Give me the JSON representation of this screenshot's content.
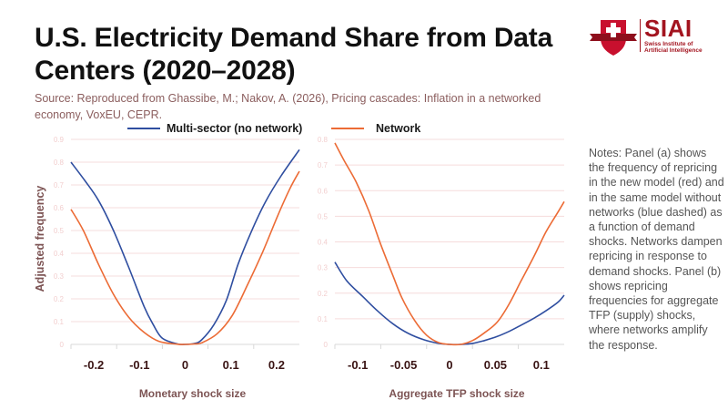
{
  "header": {
    "title": "U.S. Electricity Demand Share from Data Centers (2020–2028)",
    "source": "Source: Reproduced from Ghassibe, M.; Nakov, A. (2026), Pricing cascades: Inflation in a networked economy, VoxEU, CEPR."
  },
  "logo": {
    "name": "SIAI",
    "subtitle_line1": "Swiss Institute of",
    "subtitle_line2": "Artificial Intelligence",
    "icon": "shield-cross-icon",
    "brand_color": "#a3141f"
  },
  "notes": "Notes: Panel (a) shows the frequency of repricing in the new model (red) and in the same model without networks (blue dashed) as a function of demand shocks. Networks dampen repricing in response to demand shocks. Panel (b) shows repricing frequencies for aggregate TFP (supply) shocks, where networks amplify the response.",
  "legend": [
    {
      "name": "Multi-sector (no network)",
      "color": "#2f4ea0"
    },
    {
      "name": "Network",
      "color": "#ec6b35"
    }
  ],
  "chart_data": [
    {
      "type": "line",
      "panel": "a",
      "title": "",
      "xlabel": "Monetary shock size",
      "ylabel": "Adjusted frequency",
      "xlim": [
        -0.25,
        0.25
      ],
      "ylim": [
        0,
        0.9
      ],
      "xticks": [
        -0.2,
        -0.1,
        0,
        0.1,
        0.2
      ],
      "xtick_labels": [
        "-0.2",
        "-0.1",
        "0",
        "0.1",
        "0.2"
      ],
      "yticks": [
        0,
        0.1,
        0.2,
        0.3,
        0.4,
        0.5,
        0.6,
        0.7,
        0.8,
        0.9
      ],
      "ytick_labels": [
        "0",
        "0.1",
        "0.2",
        "0.3",
        "0.4",
        "0.5",
        "0.6",
        "0.7",
        "0.8",
        "0.9"
      ],
      "grid": true,
      "series": [
        {
          "name": "Multi-sector (no network)",
          "color": "#2f4ea0",
          "x": [
            -0.25,
            -0.22,
            -0.19,
            -0.157,
            -0.124,
            -0.09,
            -0.07,
            -0.05,
            -0.017,
            0,
            0.02,
            0.036,
            0.063,
            0.09,
            0.116,
            0.143,
            0.176,
            0.21,
            0.25
          ],
          "y": [
            0.8,
            0.72,
            0.633,
            0.5,
            0.34,
            0.167,
            0.087,
            0.027,
            0.002,
            0,
            0.004,
            0.02,
            0.087,
            0.193,
            0.353,
            0.487,
            0.627,
            0.74,
            0.855
          ]
        },
        {
          "name": "Network",
          "color": "#ec6b35",
          "x": [
            -0.25,
            -0.223,
            -0.19,
            -0.157,
            -0.124,
            -0.09,
            -0.057,
            -0.017,
            0,
            0.02,
            0.036,
            0.07,
            0.103,
            0.136,
            0.17,
            0.203,
            0.23,
            0.25
          ],
          "y": [
            0.593,
            0.5,
            0.353,
            0.22,
            0.12,
            0.053,
            0.013,
            0.001,
            0,
            0.002,
            0.007,
            0.047,
            0.127,
            0.26,
            0.407,
            0.567,
            0.687,
            0.76
          ]
        }
      ]
    },
    {
      "type": "line",
      "panel": "b",
      "title": "",
      "xlabel": "Aggregate TFP shock size",
      "ylabel": "",
      "xlim": [
        -0.125,
        0.125
      ],
      "ylim": [
        0,
        0.8
      ],
      "xticks": [
        -0.1,
        -0.05,
        0,
        0.05,
        0.1
      ],
      "xtick_labels": [
        "-0.1",
        "-0.05",
        "0",
        "0.05",
        "0.1"
      ],
      "yticks": [
        0,
        0.1,
        0.2,
        0.3,
        0.4,
        0.5,
        0.6,
        0.7,
        0.8
      ],
      "ytick_labels": [
        "0",
        "0.1",
        "0.2",
        "0.3",
        "0.4",
        "0.5",
        "0.6",
        "0.7",
        "0.8"
      ],
      "grid": true,
      "series": [
        {
          "name": "Multi-sector (no network)",
          "color": "#2f4ea0",
          "x": [
            -0.125,
            -0.112,
            -0.095,
            -0.078,
            -0.062,
            -0.045,
            -0.028,
            -0.012,
            0,
            0.012,
            0.025,
            0.038,
            0.052,
            0.065,
            0.078,
            0.092,
            0.105,
            0.118,
            0.125
          ],
          "y": [
            0.321,
            0.248,
            0.188,
            0.129,
            0.081,
            0.043,
            0.018,
            0.004,
            0,
            0,
            0.004,
            0.015,
            0.031,
            0.051,
            0.075,
            0.102,
            0.131,
            0.164,
            0.192
          ]
        },
        {
          "name": "Network",
          "color": "#ec6b35",
          "x": [
            -0.125,
            -0.115,
            -0.102,
            -0.088,
            -0.075,
            -0.062,
            -0.052,
            -0.038,
            -0.025,
            -0.012,
            0,
            0.012,
            0.025,
            0.038,
            0.052,
            0.065,
            0.078,
            0.092,
            0.105,
            0.118,
            0.125
          ],
          "y": [
            0.786,
            0.718,
            0.635,
            0.521,
            0.39,
            0.271,
            0.182,
            0.093,
            0.036,
            0.007,
            0,
            0,
            0.015,
            0.045,
            0.087,
            0.158,
            0.248,
            0.343,
            0.438,
            0.515,
            0.557
          ]
        }
      ]
    }
  ]
}
